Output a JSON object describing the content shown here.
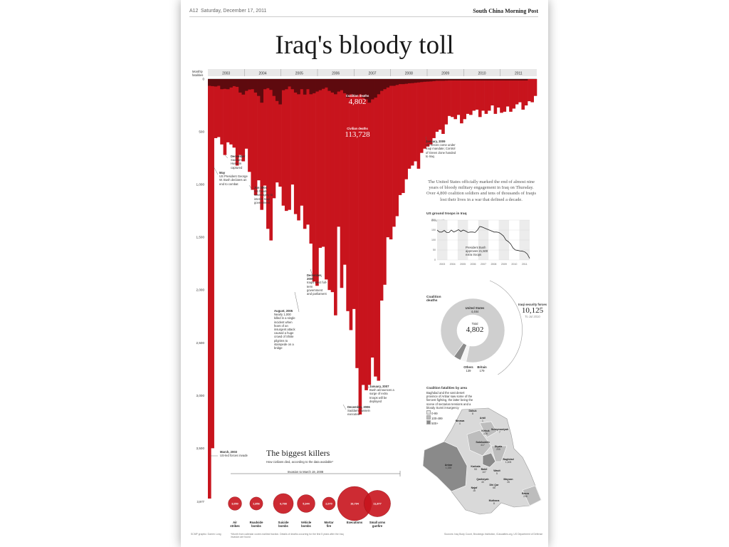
{
  "header": {
    "page": "A12",
    "date": "Saturday, December 17, 2011",
    "publication": "South China Morning Post"
  },
  "title": "Iraq's bloody toll",
  "chart_data": [
    {
      "type": "area",
      "ylabel": "Monthly fatalities",
      "x_ticks": [
        "2003",
        "2004",
        "2005",
        "2006",
        "2007",
        "2008",
        "2009",
        "2010",
        "2011"
      ],
      "y_ticks": [
        0,
        500,
        1000,
        1500,
        2000,
        2500,
        3000,
        3500
      ],
      "y_bottom_label": "3,977",
      "ylim": [
        0,
        3977
      ],
      "series": [
        {
          "name": "Coalition deaths",
          "values": [
            40,
            42,
            44,
            40,
            60,
            58,
            60,
            50,
            42,
            46,
            80,
            92,
            70,
            62,
            60,
            80,
            100,
            140,
            60,
            54,
            64,
            100,
            130,
            150,
            66,
            60,
            44,
            60,
            80,
            90,
            60,
            92,
            60,
            90,
            84,
            74,
            66,
            58,
            50,
            70,
            80,
            90,
            74,
            66,
            84,
            110,
            90,
            100,
            100,
            90,
            110,
            120,
            140,
            120,
            110,
            90,
            70,
            60,
            50,
            40,
            40,
            35,
            30,
            30,
            28,
            25,
            24,
            22,
            20,
            18,
            16,
            15,
            14,
            12,
            10,
            10,
            10,
            9,
            8,
            8,
            8,
            8,
            8,
            8,
            8,
            8,
            8,
            8,
            8,
            8,
            8,
            8,
            8,
            8,
            8,
            8,
            8,
            8,
            8,
            8,
            8,
            8,
            8,
            8
          ]
        },
        {
          "name": "Civilian deaths",
          "values": [
            3977,
            3500,
            560,
            550,
            620,
            720,
            600,
            620,
            650,
            820,
            720,
            780,
            660,
            880,
            1050,
            1100,
            960,
            1240,
            1010,
            1420,
            1530,
            1130,
            980,
            1020,
            1200,
            1250,
            1240,
            1000,
            1280,
            1340,
            1200,
            1420,
            1380,
            1560,
            1920,
            1960,
            1600,
            1590,
            1900,
            2000,
            2020,
            2240,
            1400,
            1980,
            1760,
            2200,
            2380,
            2180,
            2740,
            3180,
            2900,
            2950,
            2900,
            2640,
            2820,
            2860,
            2100,
            1950,
            1500,
            1520,
            1400,
            1300,
            1100,
            1080,
            950,
            850,
            820,
            780,
            850,
            700,
            660,
            640,
            620,
            560,
            500,
            480,
            520,
            430,
            350,
            360,
            380,
            340,
            420,
            380,
            330,
            340,
            300,
            290,
            360,
            300,
            330,
            300,
            250,
            330,
            270,
            320,
            310,
            260,
            310,
            280,
            240,
            220,
            290,
            250,
            210,
            220,
            160
          ]
        }
      ],
      "annotations": [
        {
          "label": "Coalition deaths",
          "value": "4,802"
        },
        {
          "label": "Civilian deaths",
          "value": "113,728"
        }
      ],
      "events": [
        {
          "title": "March, 2003",
          "text": "US-led forces invade"
        },
        {
          "title": "May",
          "text": "US President George W. Bush declares an end to combat"
        },
        {
          "title": "December",
          "text": "Saddam Hussein captured"
        },
        {
          "title": "Jun 2004",
          "text": "US hands sovereignty to interim Iraqi government"
        },
        {
          "title": "August, 2005",
          "text": "Nearly 1,000 killed in a single incident when fears of an insurgent attack caused a huge crowd of Shiite pilgrims to stampede on a bridge"
        },
        {
          "title": "December, 2005",
          "text": "Iraqis elect full-term government and parliament"
        },
        {
          "title": "December, 2006",
          "text": "Saddam Hussein executed"
        },
        {
          "title": "January, 2007",
          "text": "Bush announces a surge of extra troops will be deployed"
        },
        {
          "title": "January, 2009",
          "text": "US forces come under Iraqi mandate; Control of Green Zone handed to Iraq"
        }
      ]
    },
    {
      "type": "line",
      "title": "US ground troops in Iraq",
      "ylabel": "thousands",
      "y_ticks": [
        0,
        50,
        100,
        150,
        200
      ],
      "x_ticks": [
        "2003",
        "2004",
        "2005",
        "2006",
        "2007",
        "2008",
        "2009",
        "2010",
        "2011"
      ],
      "values": [
        150,
        140,
        140,
        148,
        138,
        138,
        150,
        140,
        145,
        152,
        143,
        150,
        145,
        138,
        140,
        140,
        138,
        150,
        168,
        165,
        160,
        155,
        150,
        145,
        140,
        140,
        138,
        130,
        120,
        100,
        92,
        80,
        60,
        50,
        48,
        45,
        44,
        40,
        30,
        8
      ],
      "annotation": "President Bush approves 21,500 extra troops"
    },
    {
      "type": "pie",
      "title": "Coalition deaths",
      "total_label": "Total",
      "total": "4,802",
      "slices": [
        {
          "name": "United States",
          "value": 4484,
          "label": "4,484"
        },
        {
          "name": "Britain",
          "value": 179,
          "label": "179"
        },
        {
          "name": "Others",
          "value": 139,
          "label": "139"
        }
      ],
      "callout": {
        "name": "Iraqi security forces",
        "value": "10,125",
        "note": "To Jul 2010"
      }
    },
    {
      "type": "bubble",
      "title": "The biggest killers",
      "subtitle": "How civilians died, according to the data available*",
      "axis_note": "Invasion to March 19, 2008",
      "items": [
        {
          "name": "Air strikes",
          "value": 3050,
          "label": "3,050"
        },
        {
          "name": "Roadside bombs",
          "value": 2856,
          "label": "2,856"
        },
        {
          "name": "Suicide bombs",
          "value": 6798,
          "label": "6,798"
        },
        {
          "name": "Vehicle bombs",
          "value": 5344,
          "label": "5,344"
        },
        {
          "name": "Mortar fire",
          "value": 2070,
          "label": "2,070"
        },
        {
          "name": "Executions",
          "value": 19794,
          "label": "19,794"
        },
        {
          "name": "Small arms gunfire",
          "value": 11877,
          "label": "11,877"
        }
      ]
    }
  ],
  "summary": "The United States officially marked the end of almost nine years of bloody military engagement in Iraq on Thursday. Over 4,800 coalition soldiers and tens of thousands of Iraqis lost their lives in a war that defined a decade.",
  "map": {
    "title": "Coalition fatalities by area",
    "subtitle": "Baghdad and the vast desert province of Anbar saw some of the fiercest fighting, the latter being the scene of sectarian tensions and a bloody Sunni insurgency",
    "legend": [
      "0-99",
      "100-499",
      "500+"
    ],
    "regions": [
      {
        "name": "Dahuk",
        "value": "8"
      },
      {
        "name": "Ninawa",
        "value": "0"
      },
      {
        "name": "Arbil",
        "value": "1"
      },
      {
        "name": "Kirkuk",
        "value": "226"
      },
      {
        "name": "Sulaymaniyah",
        "value": "7"
      },
      {
        "name": "Salahuddin",
        "value": "417"
      },
      {
        "name": "Diyala",
        "value": "205"
      },
      {
        "name": "Anbar",
        "value": "1,335"
      },
      {
        "name": "Baghdad",
        "value": "1,405"
      },
      {
        "name": "Karbala",
        "value": "53"
      },
      {
        "name": "Babil",
        "value": "107"
      },
      {
        "name": "Wasit",
        "value": "5"
      },
      {
        "name": "Qadisiyah",
        "value": "40"
      },
      {
        "name": "Najaf",
        "value": "18"
      },
      {
        "name": "Dhi Qar",
        "value": "68"
      },
      {
        "name": "Maysan",
        "value": "26"
      },
      {
        "name": "Basra",
        "value": "236"
      },
      {
        "name": "Muthana",
        "value": "8"
      }
    ]
  },
  "footer": {
    "credit": "SCMP graphic: Darren Long",
    "note": "*Month from calendar covers earliest fraction. Details of deaths occurring for the first 5 years after the Iraq invasion are found",
    "sources": "Sources: Iraq Body Count, Brookings Institution, iCasualties.org, US Department of Defense"
  },
  "colors": {
    "civilian": "#c8141d",
    "coalition": "#5e0a0e",
    "chart_bg": "#ffffff"
  }
}
